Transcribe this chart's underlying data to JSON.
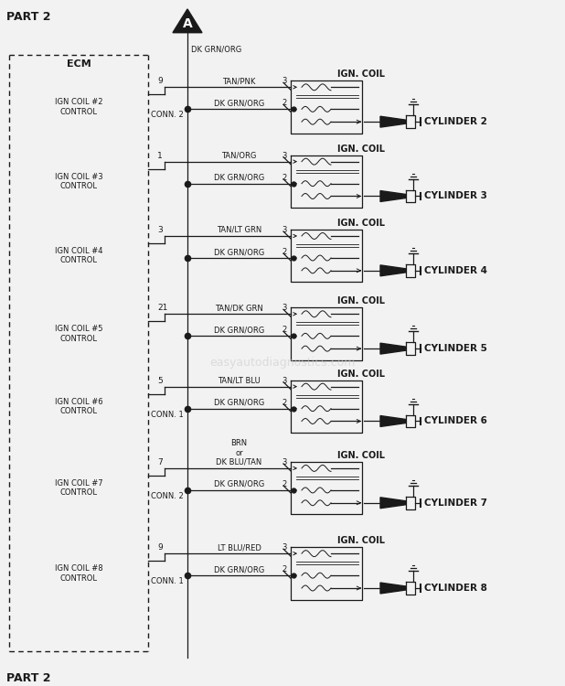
{
  "title": "PART 2",
  "bg_color": "#f0f0f0",
  "text_color": "#1a1a1a",
  "ecm_label": "ECM",
  "connector_label_top": "DK GRN/ORG",
  "rows": [
    {
      "label": "IGN COIL #2\nCONTROL",
      "pin": "9",
      "conn": "CONN. 2",
      "wire": "TAN/PNK",
      "cylinder": "CYLINDER 2"
    },
    {
      "label": "IGN COIL #3\nCONTROL",
      "pin": "1",
      "conn": "",
      "wire": "TAN/ORG",
      "cylinder": "CYLINDER 3"
    },
    {
      "label": "IGN COIL #4\nCONTROL",
      "pin": "3",
      "conn": "",
      "wire": "TAN/LT GRN",
      "cylinder": "CYLINDER 4"
    },
    {
      "label": "IGN COIL #5\nCONTROL",
      "pin": "21",
      "conn": "",
      "wire": "TAN/DK GRN",
      "cylinder": "CYLINDER 5"
    },
    {
      "label": "IGN COIL #6\nCONTROL",
      "pin": "5",
      "conn": "CONN. 1",
      "wire": "TAN/LT BLU",
      "cylinder": "CYLINDER 6"
    },
    {
      "label": "IGN COIL #7\nCONTROL",
      "pin": "7",
      "conn": "CONN. 2",
      "wire": "BRN\nor\nDK BLU/TAN",
      "cylinder": "CYLINDER 7"
    },
    {
      "label": "IGN COIL #8\nCONTROL",
      "pin": "9",
      "conn": "CONN. 1",
      "wire": "LT BLU/RED",
      "cylinder": "CYLINDER 8"
    }
  ],
  "gnd_wire": "DK GRN/ORG",
  "watermark": "easyautodiagnostics.com"
}
